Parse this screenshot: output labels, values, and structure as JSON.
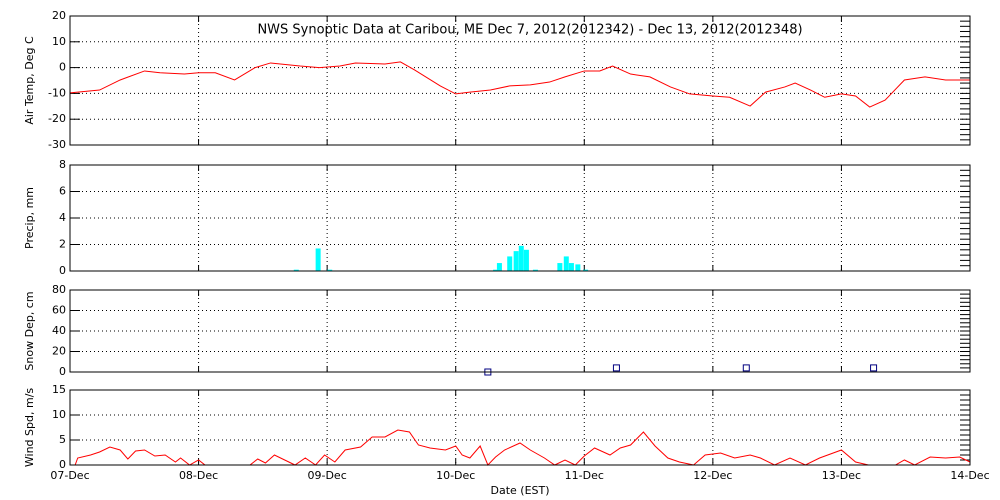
{
  "chart_data": [
    {
      "type": "line",
      "title": "NWS Synoptic Data at Caribou, ME   Dec  7, 2012(2012342) - Dec 13, 2012(2012348)",
      "ylabel": "Air Temp, Deg C",
      "color": "#ff0000",
      "grid": true,
      "xlim": [
        0,
        7
      ],
      "xticks": [
        0,
        1,
        2,
        3,
        4,
        5,
        6,
        7
      ],
      "ylim": [
        -30,
        20
      ],
      "yticks": [
        -30,
        -20,
        -10,
        0,
        10,
        20
      ],
      "x": [
        0,
        0.23,
        0.39,
        0.58,
        0.7,
        0.89,
        1.0,
        1.13,
        1.28,
        1.44,
        1.56,
        1.79,
        1.94,
        2.1,
        2.22,
        2.45,
        2.57,
        2.68,
        2.88,
        3.0,
        3.11,
        3.27,
        3.42,
        3.58,
        3.73,
        3.85,
        4.0,
        4.12,
        4.22,
        4.36,
        4.51,
        4.67,
        4.82,
        5.0,
        5.13,
        5.29,
        5.41,
        5.56,
        5.64,
        5.76,
        5.87,
        6.0,
        6.11,
        6.22,
        6.34,
        6.49,
        6.65,
        6.81,
        7.0
      ],
      "values": [
        -9.8,
        -8.7,
        -4.8,
        -1.3,
        -2,
        -2.5,
        -2,
        -2,
        -4.8,
        0,
        1.8,
        0.6,
        0,
        0.6,
        1.8,
        1.4,
        2.2,
        -0.9,
        -7.1,
        -10.2,
        -9.5,
        -8.7,
        -7.1,
        -6.7,
        -5.6,
        -3.6,
        -1.3,
        -1.3,
        0.6,
        -2.5,
        -3.6,
        -7.5,
        -10.2,
        -11,
        -11.5,
        -14.9,
        -9.5,
        -7.5,
        -6,
        -8.7,
        -11.5,
        -10.2,
        -11,
        -15.3,
        -12.6,
        -4.8,
        -3.6,
        -4.8,
        -4.8
      ]
    },
    {
      "type": "bar",
      "ylabel": "Precip, mm",
      "color": "#00ffff",
      "grid": true,
      "xlim": [
        0,
        7
      ],
      "xticks": [
        0,
        1,
        2,
        3,
        4,
        5,
        6,
        7
      ],
      "ylim": [
        0,
        8
      ],
      "yticks": [
        0,
        2,
        4,
        6,
        8
      ],
      "x": [
        1.76,
        1.93,
        2.02,
        3.31,
        3.34,
        3.42,
        3.47,
        3.51,
        3.55,
        3.62,
        3.81,
        3.86,
        3.9,
        3.95,
        4.01
      ],
      "values": [
        0.1,
        1.7,
        0.1,
        0.1,
        0.6,
        1.1,
        1.5,
        1.9,
        1.6,
        0.1,
        0.6,
        1.1,
        0.6,
        0.5,
        0.1
      ]
    },
    {
      "type": "scatter",
      "ylabel": "Snow Dep, cm",
      "color": "#000080",
      "grid": true,
      "xlim": [
        0,
        7
      ],
      "xticks": [
        0,
        1,
        2,
        3,
        4,
        5,
        6,
        7
      ],
      "ylim": [
        0,
        80
      ],
      "yticks": [
        0,
        20,
        40,
        60,
        80
      ],
      "x": [
        3.25,
        4.25,
        5.26,
        6.25
      ],
      "values": [
        0,
        4,
        4,
        4
      ]
    },
    {
      "type": "line",
      "ylabel": "Wind Spd, m/s",
      "xlabel": "Date (EST)",
      "color": "#ff0000",
      "grid": true,
      "xlim": [
        0,
        7
      ],
      "xticks": [
        {
          "value": 0,
          "label": "07-Dec"
        },
        {
          "value": 1,
          "label": "08-Dec"
        },
        {
          "value": 2,
          "label": "09-Dec"
        },
        {
          "value": 3,
          "label": "10-Dec"
        },
        {
          "value": 4,
          "label": "11-Dec"
        },
        {
          "value": 5,
          "label": "12-Dec"
        },
        {
          "value": 6,
          "label": "13-Dec"
        },
        {
          "value": 7,
          "label": "14-Dec"
        }
      ],
      "ylim": [
        0,
        15
      ],
      "yticks": [
        0,
        5,
        10,
        15
      ],
      "x": [
        0,
        0.04,
        0.06,
        0.16,
        0.23,
        0.31,
        0.39,
        0.45,
        0.51,
        0.58,
        0.66,
        0.74,
        0.82,
        0.86,
        0.93,
        1.0,
        1.05,
        1.4,
        1.46,
        1.52,
        1.59,
        1.67,
        1.75,
        1.83,
        1.91,
        1.98,
        2.06,
        2.14,
        2.26,
        2.35,
        2.45,
        2.55,
        2.64,
        2.71,
        2.8,
        2.92,
        3.0,
        3.05,
        3.11,
        3.19,
        3.25,
        3.31,
        3.38,
        3.5,
        3.58,
        3.69,
        3.77,
        3.85,
        3.93,
        4.0,
        4.08,
        4.2,
        4.28,
        4.36,
        4.46,
        4.55,
        4.65,
        4.74,
        4.85,
        4.94,
        5.06,
        5.17,
        5.29,
        5.37,
        5.48,
        5.6,
        5.72,
        5.83,
        6.0,
        6.11,
        6.21,
        6.3,
        6.42,
        6.49,
        6.57,
        6.69,
        6.81,
        6.92,
        7.0
      ],
      "values": [
        0,
        0,
        1.4,
        2,
        2.6,
        3.6,
        3,
        1.2,
        2.8,
        3,
        1.8,
        2,
        0.6,
        1.4,
        0,
        1,
        0,
        0,
        1.2,
        0.4,
        2,
        1,
        0,
        1.4,
        0,
        2,
        0.6,
        3,
        3.6,
        5.6,
        5.6,
        7,
        6.6,
        4,
        3.4,
        3,
        3.8,
        2,
        1.4,
        3.8,
        0,
        1.6,
        3,
        4.4,
        3,
        1.4,
        0,
        1,
        0,
        1.8,
        3.4,
        2,
        3.4,
        4,
        6.6,
        3.8,
        1.4,
        0.6,
        0,
        2,
        2.4,
        1.4,
        2,
        1.4,
        0,
        1.4,
        0,
        1.4,
        3,
        0.6,
        0,
        0,
        0,
        1,
        0,
        1.6,
        1.4,
        1.6,
        0.6
      ]
    }
  ]
}
